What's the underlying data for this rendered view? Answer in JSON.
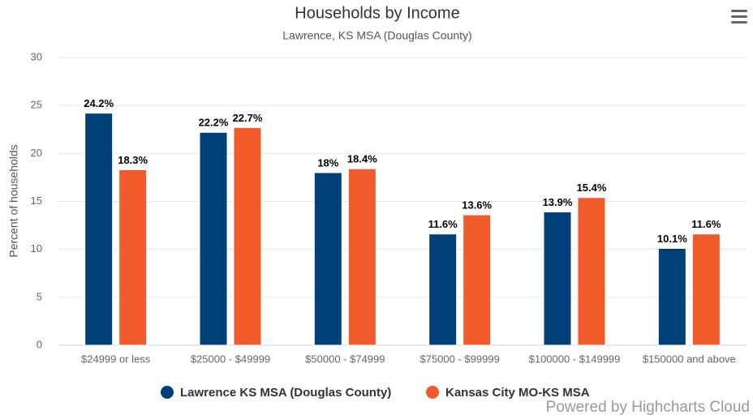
{
  "chart_data": {
    "type": "bar",
    "title": "Households by Income",
    "subtitle": "Lawrence, KS MSA (Douglas County)",
    "y_label": "Percent of households",
    "credits": "Powered by Highcharts Cloud",
    "categories": [
      "$24999 or less",
      "$25000 - $49999",
      "$50000 - $74999",
      "$75000 - $99999",
      "$100000 - $149999",
      "$150000 and above"
    ],
    "series": [
      {
        "name": "Lawrence KS MSA (Douglas County)",
        "color": "#004079",
        "values": [
          24.2,
          22.2,
          18,
          11.6,
          13.9,
          10.1
        ],
        "value_labels": [
          "24.2%",
          "22.2%",
          "18%",
          "11.6%",
          "13.9%",
          "10.1%"
        ]
      },
      {
        "name": "Kansas City MO-KS MSA",
        "color": "#f15a2b",
        "values": [
          18.3,
          22.7,
          18.4,
          13.6,
          15.4,
          11.6
        ],
        "value_labels": [
          "18.3%",
          "22.7%",
          "18.4%",
          "13.6%",
          "15.4%",
          "11.6%"
        ]
      }
    ],
    "ylim": [
      0,
      30
    ],
    "yticks": [
      0,
      5,
      10,
      15,
      20,
      25,
      30
    ],
    "grid": true
  }
}
